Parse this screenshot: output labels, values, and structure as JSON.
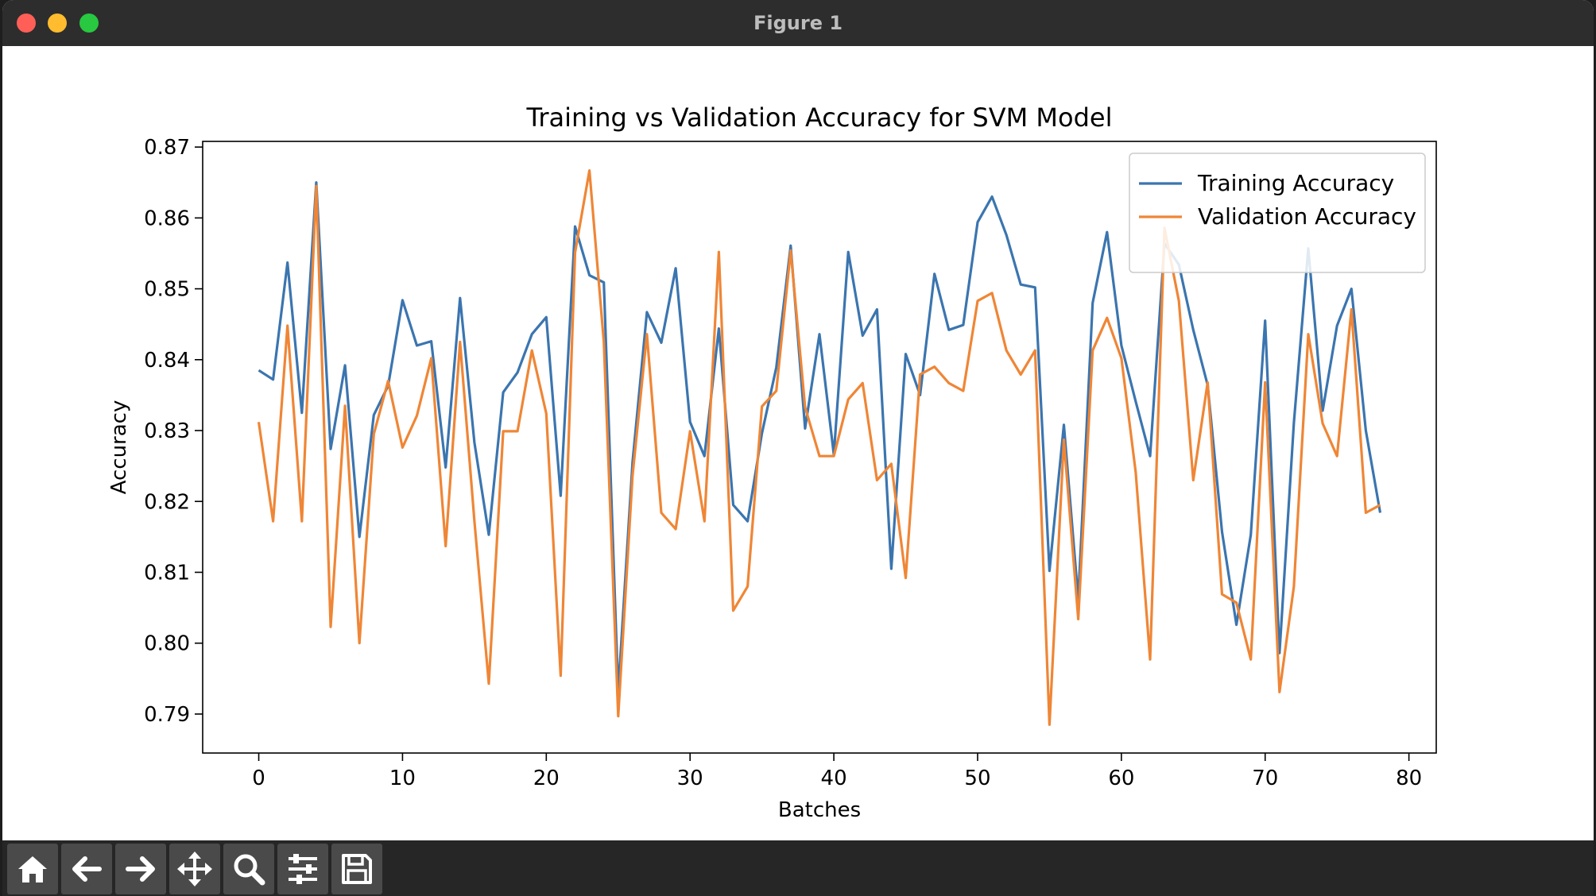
{
  "window": {
    "title": "Figure 1"
  },
  "toolbar": {
    "buttons": [
      {
        "name": "home-button",
        "icon": "home-icon"
      },
      {
        "name": "back-button",
        "icon": "arrow-left-icon"
      },
      {
        "name": "forward-button",
        "icon": "arrow-right-icon"
      },
      {
        "name": "pan-button",
        "icon": "move-icon"
      },
      {
        "name": "zoom-button",
        "icon": "magnifier-icon"
      },
      {
        "name": "configure-subplots-button",
        "icon": "sliders-icon"
      },
      {
        "name": "save-button",
        "icon": "floppy-disk-icon"
      }
    ]
  },
  "chart_data": {
    "type": "line",
    "title": "Training vs Validation Accuracy for SVM Model",
    "xlabel": "Batches",
    "ylabel": "Accuracy",
    "xlim": [
      -3.9,
      81.9
    ],
    "ylim": [
      0.7845,
      0.8708
    ],
    "xticks": [
      0,
      10,
      20,
      30,
      40,
      50,
      60,
      70,
      80
    ],
    "yticks": [
      0.79,
      0.8,
      0.81,
      0.82,
      0.83,
      0.84,
      0.85,
      0.86,
      0.87
    ],
    "grid": false,
    "legend_position": "top-right",
    "series": [
      {
        "name": "Training Accuracy",
        "color": "#3b75af",
        "values": [
          0.8385,
          0.8372,
          0.8537,
          0.8325,
          0.865,
          0.8274,
          0.8392,
          0.815,
          0.8322,
          0.8363,
          0.8484,
          0.842,
          0.8426,
          0.8248,
          0.8487,
          0.8283,
          0.8153,
          0.8354,
          0.8382,
          0.8436,
          0.846,
          0.8208,
          0.8588,
          0.8519,
          0.8509,
          0.7931,
          0.8255,
          0.8467,
          0.8424,
          0.8529,
          0.8312,
          0.8264,
          0.8444,
          0.8195,
          0.8172,
          0.8296,
          0.8389,
          0.8561,
          0.8303,
          0.8436,
          0.8266,
          0.8552,
          0.8434,
          0.8471,
          0.8105,
          0.8408,
          0.835,
          0.8521,
          0.8442,
          0.8449,
          0.8594,
          0.863,
          0.8576,
          0.8506,
          0.8502,
          0.8102,
          0.8308,
          0.8062,
          0.848,
          0.858,
          0.842,
          0.8341,
          0.8264,
          0.8564,
          0.8534,
          0.8442,
          0.8364,
          0.8157,
          0.8026,
          0.8153,
          0.8455,
          0.7986,
          0.8311,
          0.8557,
          0.8328,
          0.8448,
          0.85,
          0.83,
          0.8184
        ]
      },
      {
        "name": "Validation Accuracy",
        "color": "#ef8636",
        "values": [
          0.8312,
          0.8172,
          0.8448,
          0.8172,
          0.8645,
          0.8023,
          0.8335,
          0.8,
          0.8295,
          0.837,
          0.8276,
          0.8321,
          0.8402,
          0.8137,
          0.8425,
          0.8172,
          0.7943,
          0.8299,
          0.8299,
          0.8413,
          0.8324,
          0.7954,
          0.8551,
          0.8667,
          0.8425,
          0.7897,
          0.8236,
          0.8436,
          0.8184,
          0.8161,
          0.8299,
          0.8172,
          0.8552,
          0.8046,
          0.808,
          0.8334,
          0.8356,
          0.8554,
          0.8333,
          0.8264,
          0.8264,
          0.8344,
          0.8367,
          0.823,
          0.8253,
          0.8092,
          0.8379,
          0.839,
          0.8367,
          0.8356,
          0.8483,
          0.8494,
          0.8413,
          0.8379,
          0.8413,
          0.7885,
          0.8287,
          0.8034,
          0.8413,
          0.8459,
          0.8402,
          0.8241,
          0.7977,
          0.8586,
          0.8483,
          0.823,
          0.8368,
          0.8069,
          0.8057,
          0.7977,
          0.8368,
          0.7931,
          0.808,
          0.8436,
          0.831,
          0.8264,
          0.8471,
          0.8184,
          0.8195
        ]
      }
    ]
  }
}
